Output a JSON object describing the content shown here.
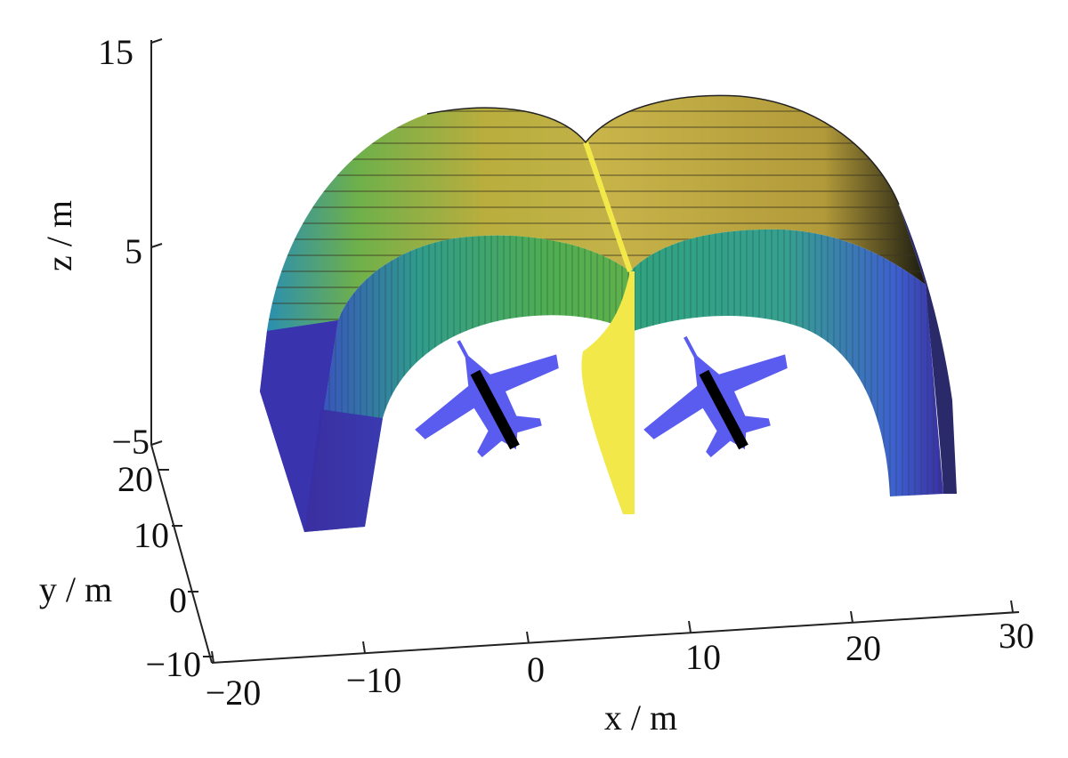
{
  "figure": {
    "z_ticks": [
      "15",
      "5",
      "−5"
    ],
    "z_label": "z / m",
    "y_ticks": [
      "20",
      "10",
      "0",
      "−10"
    ],
    "y_label": "y / m",
    "x_ticks": [
      "−20",
      "−10",
      "0",
      "10",
      "20",
      "30"
    ],
    "x_label": "x / m"
  },
  "colors": {
    "deep_blue": "#3a2fa0",
    "mid_blue": "#3d5fd0",
    "teal": "#2f9c8c",
    "green": "#5fb04a",
    "olive": "#b8b040",
    "yellow": "#f2e84a",
    "aircraft": "#5a5cf0",
    "aircraft_stripe": "#000000"
  },
  "icons": [
    "aircraft-icon"
  ]
}
